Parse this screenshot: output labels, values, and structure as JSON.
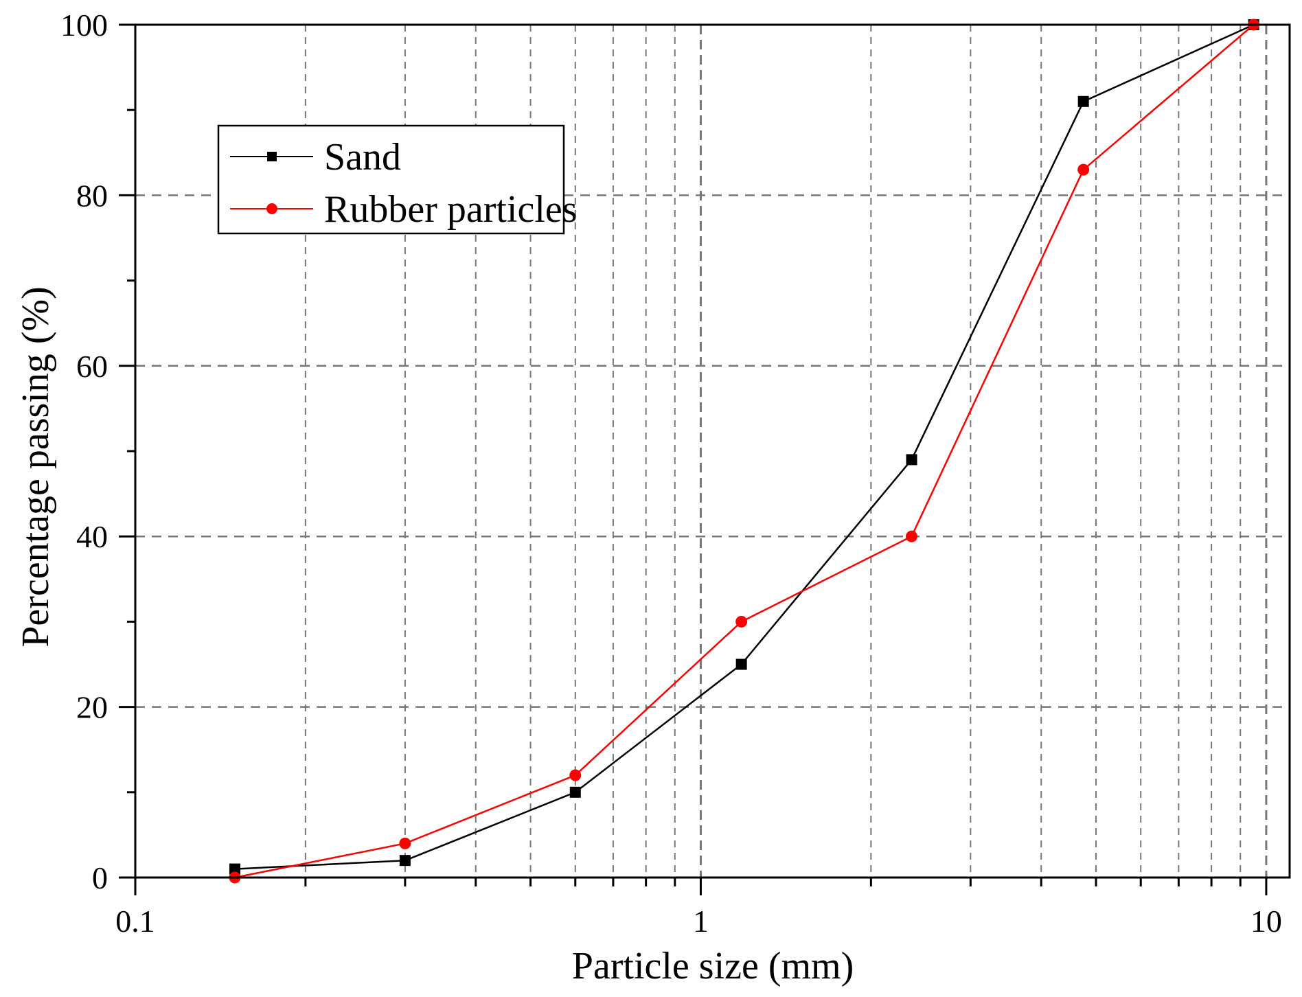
{
  "chart_data": {
    "type": "line",
    "title": "",
    "xlabel": "Particle size (mm)",
    "ylabel": "Percentage passing (%)",
    "xscale": "log",
    "xlim": [
      0.1,
      11.0
    ],
    "ylim": [
      0,
      100
    ],
    "x_ticks": [
      0.1,
      1,
      10
    ],
    "x_tick_labels": [
      "0.1",
      "1",
      "10"
    ],
    "y_ticks": [
      0,
      20,
      40,
      60,
      80,
      100
    ],
    "y_tick_labels": [
      "0",
      "20",
      "40",
      "60",
      "80",
      "100"
    ],
    "y_minor_ticks": [
      10,
      30,
      50,
      70,
      90
    ],
    "grid": true,
    "legend_position": "upper left (inset)",
    "x": [
      0.15,
      0.3,
      0.6,
      1.18,
      2.36,
      4.75,
      9.5
    ],
    "series": [
      {
        "name": "Sand",
        "color": "#000000",
        "marker": "square",
        "values": [
          1,
          2,
          10,
          25,
          49,
          91,
          100
        ]
      },
      {
        "name": "Rubber particles",
        "color": "#ff0000",
        "marker": "circle",
        "values": [
          0,
          4,
          12,
          30,
          40,
          83,
          100
        ]
      }
    ]
  },
  "legend": {
    "items": [
      {
        "label": "Sand",
        "color": "#000000",
        "marker": "square"
      },
      {
        "label": "Rubber particles",
        "color": "#ff0000",
        "marker": "circle"
      }
    ]
  },
  "colors": {
    "axis": "#000000",
    "grid": "#777777",
    "background": "#ffffff"
  }
}
